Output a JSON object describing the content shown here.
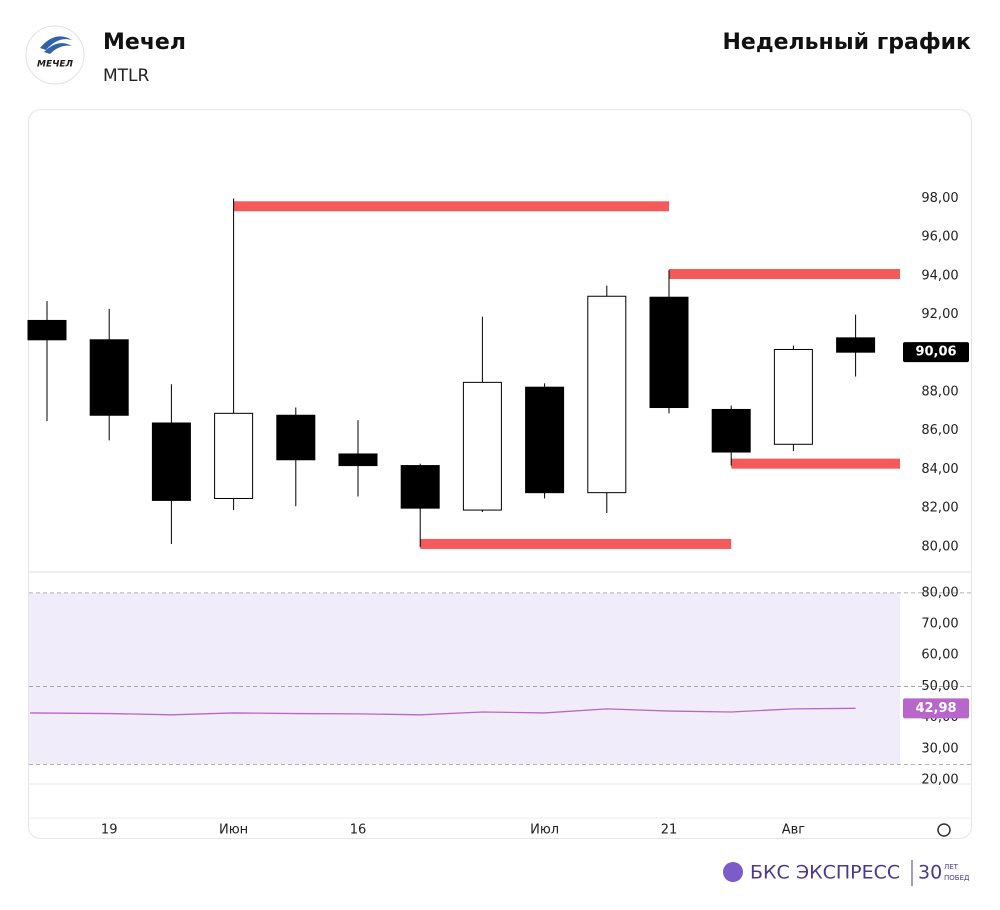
{
  "header": {
    "logo": "МЕЧЕЛ",
    "title": "Мечел",
    "ticker": "MTLR",
    "period": "Недельный график"
  },
  "footer": {
    "brand": "БКС ЭКСПРЕСС",
    "years": "30",
    "years_word": "ЛЕТ",
    "years_sub": "ПОБЕД"
  },
  "chart_data": [
    {
      "type": "candlestick",
      "categories": [
        null,
        "19",
        null,
        "Июн",
        null,
        "16",
        null,
        null,
        "Июл",
        null,
        "21",
        null,
        "Авг",
        null
      ],
      "open": [
        91.7,
        90.7,
        86.4,
        82.5,
        86.8,
        84.8,
        84.2,
        81.9,
        88.25,
        82.8,
        92.9,
        87.1,
        85.3,
        90.8
      ],
      "high": [
        92.7,
        92.3,
        88.4,
        98.0,
        87.2,
        86.55,
        84.3,
        91.9,
        88.45,
        93.5,
        94.3,
        87.3,
        90.4,
        92.0
      ],
      "low": [
        86.5,
        85.5,
        80.15,
        81.9,
        82.1,
        82.6,
        80.0,
        81.8,
        82.5,
        81.75,
        86.9,
        84.2,
        84.95,
        88.8
      ],
      "close": [
        90.7,
        86.8,
        82.4,
        86.9,
        84.5,
        84.2,
        82.0,
        88.5,
        82.8,
        92.95,
        87.2,
        84.9,
        90.2,
        90.06
      ],
      "close_labels": [
        null,
        null,
        null,
        null,
        null,
        null,
        null,
        null,
        null,
        null,
        null,
        null,
        null,
        "90,06"
      ],
      "up_color": "#ffffff",
      "down_color": "#000000",
      "levels": [
        {
          "value": 97.6,
          "start": 3,
          "end": 10
        },
        {
          "value": 94.1,
          "start": 10,
          "end": null
        },
        {
          "value": 84.3,
          "start": 11,
          "end": null
        },
        {
          "value": 80.15,
          "start": 6,
          "end": 11
        }
      ],
      "level_color": "#f55a5a",
      "ylim": [
        78.7,
        101.8
      ],
      "yticks": [
        {
          "value": 80,
          "label": "80,00"
        },
        {
          "value": 82,
          "label": "82,00"
        },
        {
          "value": 84,
          "label": "84,00"
        },
        {
          "value": 86,
          "label": "86,00"
        },
        {
          "value": 88,
          "label": "88,00"
        },
        {
          "value": 90,
          "label": "90,00"
        },
        {
          "value": 92,
          "label": "92,00"
        },
        {
          "value": 94,
          "label": "94,00"
        },
        {
          "value": 96,
          "label": "96,00"
        },
        {
          "value": 98,
          "label": "98,00"
        }
      ]
    },
    {
      "type": "line",
      "values": [
        41.5,
        41.3,
        40.9,
        41.5,
        41.3,
        41.2,
        40.9,
        41.8,
        41.5,
        42.8,
        42.1,
        41.8,
        42.8,
        42.98
      ],
      "value_labels": [
        null,
        null,
        null,
        null,
        null,
        null,
        null,
        null,
        null,
        null,
        null,
        null,
        null,
        "42,98"
      ],
      "color": "#b667c9",
      "band": [
        25,
        80
      ],
      "band_color": "#f1ecf9",
      "guides": [
        80,
        50,
        25
      ],
      "ylim": [
        7.8,
        86.7
      ],
      "yticks": [
        {
          "value": 20,
          "label": "20,00"
        },
        {
          "value": 30,
          "label": "30,00"
        },
        {
          "value": 40,
          "label": "40,00"
        },
        {
          "value": 50,
          "label": "50,00"
        },
        {
          "value": 60,
          "label": "60,00"
        },
        {
          "value": 70,
          "label": "70,00"
        },
        {
          "value": 80,
          "label": "80,00"
        }
      ]
    }
  ]
}
